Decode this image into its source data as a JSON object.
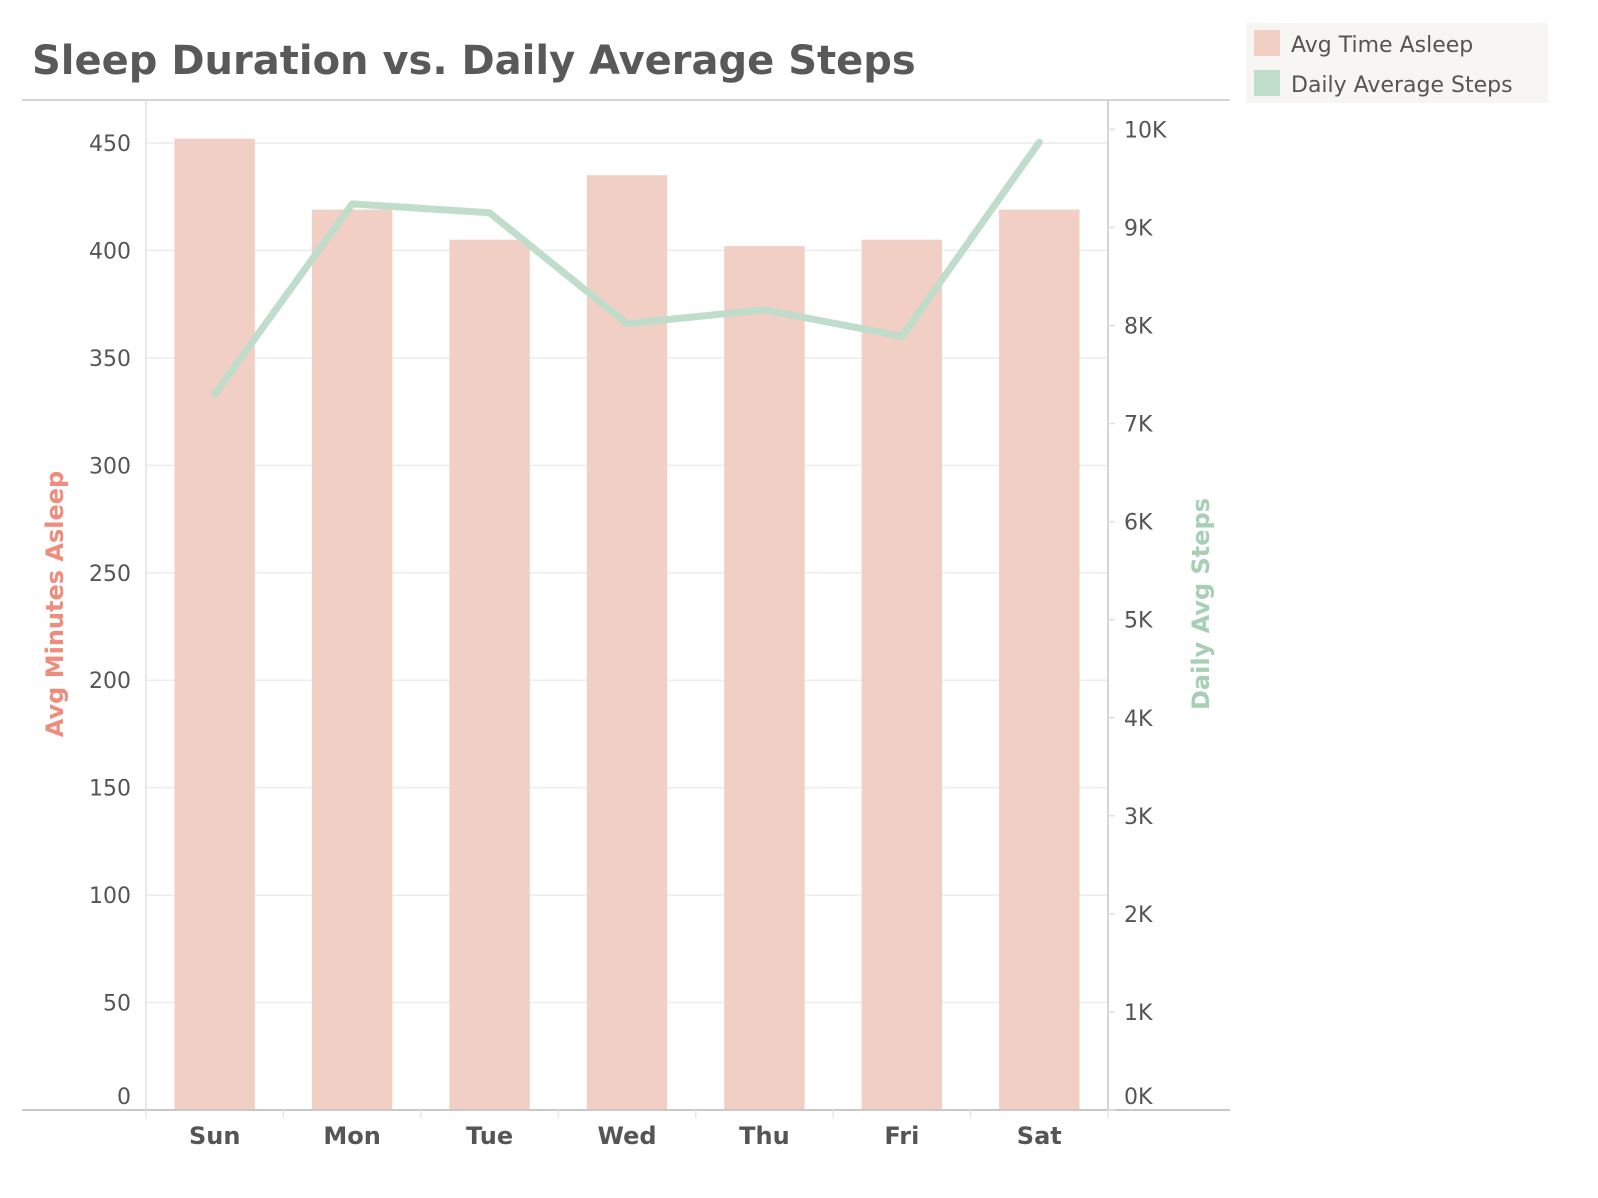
{
  "chart_data": {
    "type": "bar",
    "title": "Sleep Duration vs. Daily Average Steps",
    "categories": [
      "Sun",
      "Mon",
      "Tue",
      "Wed",
      "Thu",
      "Fri",
      "Sat"
    ],
    "series": [
      {
        "name": "Avg Time Asleep",
        "type": "bar",
        "axis": "left",
        "color": "#f2cfc4",
        "values": [
          452,
          419,
          405,
          435,
          402,
          405,
          419
        ]
      },
      {
        "name": "Daily Average Steps",
        "type": "line",
        "axis": "right",
        "color": "#c0dccb",
        "values": [
          7300,
          9240,
          9150,
          8020,
          8160,
          7890,
          9870
        ]
      }
    ],
    "y_left": {
      "label": "Avg Minutes Asleep",
      "label_color": "#ef8c7c",
      "range": [
        0,
        470
      ],
      "ticks": [
        0,
        50,
        100,
        150,
        200,
        250,
        300,
        350,
        400,
        450
      ],
      "tick_labels": [
        "0",
        "50",
        "100",
        "150",
        "200",
        "250",
        "300",
        "350",
        "400",
        "450"
      ]
    },
    "y_right": {
      "label": "Daily Avg Steps",
      "label_color": "#a6cfb4",
      "range": [
        0,
        10300
      ],
      "ticks": [
        0,
        1000,
        2000,
        3000,
        4000,
        5000,
        6000,
        7000,
        8000,
        9000,
        10000
      ],
      "tick_labels": [
        "0K",
        "1K",
        "2K",
        "3K",
        "4K",
        "5K",
        "6K",
        "7K",
        "8K",
        "9K",
        "10K"
      ]
    },
    "grid": true,
    "legend_position": "top-right"
  }
}
